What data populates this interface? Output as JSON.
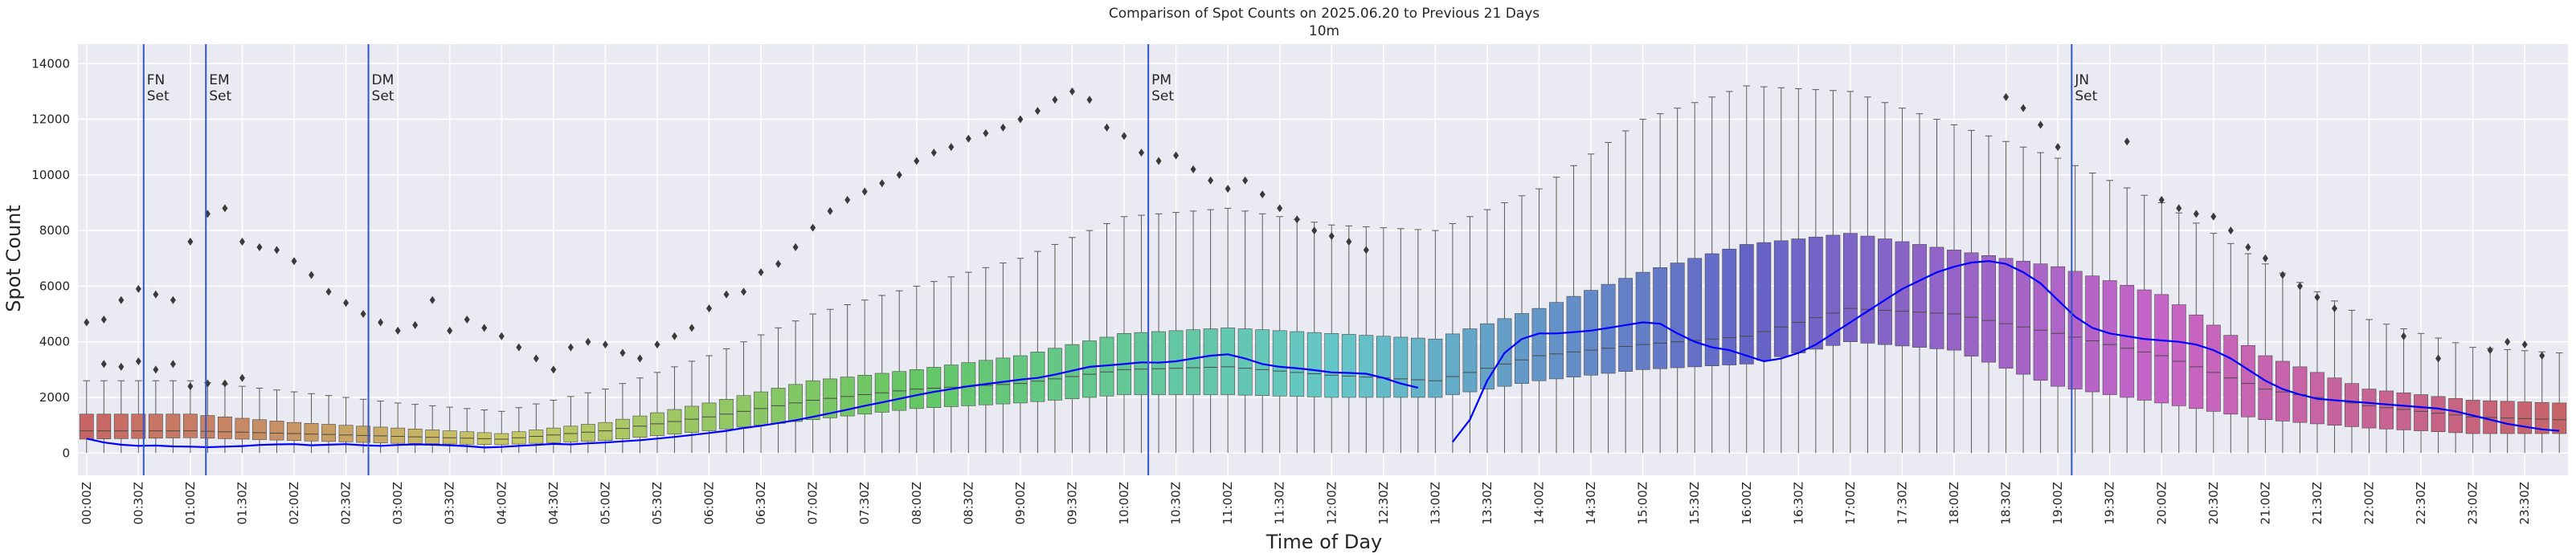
{
  "chart_data": {
    "type": "box",
    "title": "Comparison of Spot Counts on 2025.06.20 to Previous 21 Days",
    "subtitle": "10m",
    "xlabel": "Time of Day",
    "ylabel": "Spot Count",
    "ylim": [
      -800,
      14700
    ],
    "yticks": [
      0,
      2000,
      4000,
      6000,
      8000,
      10000,
      12000,
      14000
    ],
    "bins_per_day": 144,
    "bin_minutes": 10,
    "xtick_labels": [
      "00:00Z",
      "00:30Z",
      "01:00Z",
      "01:30Z",
      "02:00Z",
      "02:30Z",
      "03:00Z",
      "03:30Z",
      "04:00Z",
      "04:30Z",
      "05:00Z",
      "05:30Z",
      "06:00Z",
      "06:30Z",
      "07:00Z",
      "07:30Z",
      "08:00Z",
      "08:30Z",
      "09:00Z",
      "09:30Z",
      "10:00Z",
      "10:30Z",
      "11:00Z",
      "11:30Z",
      "12:00Z",
      "12:30Z",
      "13:00Z",
      "13:30Z",
      "14:00Z",
      "14:30Z",
      "15:00Z",
      "15:30Z",
      "16:00Z",
      "16:30Z",
      "17:00Z",
      "17:30Z",
      "18:00Z",
      "18:30Z",
      "19:00Z",
      "19:30Z",
      "20:00Z",
      "20:30Z",
      "21:00Z",
      "21:30Z",
      "22:00Z",
      "22:30Z",
      "23:00Z",
      "23:30Z"
    ],
    "annotations": [
      {
        "name": "fn",
        "bin": 3.3,
        "line1": "FN",
        "line2": "Set"
      },
      {
        "name": "em",
        "bin": 6.9,
        "line1": "EM",
        "line2": "Set"
      },
      {
        "name": "dm",
        "bin": 16.3,
        "line1": "DM",
        "line2": "Set"
      },
      {
        "name": "pm",
        "bin": 61.4,
        "line1": "PM",
        "line2": "Set"
      },
      {
        "name": "jn",
        "bin": 114.8,
        "line1": "JN",
        "line2": "Set"
      }
    ],
    "median_keypoints": [
      [
        0,
        800
      ],
      [
        6,
        800
      ],
      [
        12,
        700
      ],
      [
        18,
        600
      ],
      [
        24,
        500
      ],
      [
        30,
        800
      ],
      [
        36,
        1300
      ],
      [
        42,
        1900
      ],
      [
        48,
        2300
      ],
      [
        54,
        2500
      ],
      [
        60,
        3000
      ],
      [
        66,
        3100
      ],
      [
        72,
        2800
      ],
      [
        78,
        2600
      ],
      [
        84,
        3500
      ],
      [
        90,
        3900
      ],
      [
        96,
        4200
      ],
      [
        102,
        5200
      ],
      [
        108,
        5000
      ],
      [
        114,
        4300
      ],
      [
        120,
        3500
      ],
      [
        126,
        2300
      ],
      [
        132,
        1700
      ],
      [
        138,
        1300
      ],
      [
        143,
        1200
      ]
    ],
    "q1_keypoints": [
      [
        0,
        500
      ],
      [
        6,
        550
      ],
      [
        12,
        450
      ],
      [
        18,
        350
      ],
      [
        24,
        300
      ],
      [
        30,
        450
      ],
      [
        36,
        800
      ],
      [
        42,
        1200
      ],
      [
        48,
        1600
      ],
      [
        54,
        1800
      ],
      [
        60,
        2100
      ],
      [
        66,
        2100
      ],
      [
        72,
        2000
      ],
      [
        78,
        2000
      ],
      [
        84,
        2600
      ],
      [
        90,
        3000
      ],
      [
        96,
        3200
      ],
      [
        102,
        4000
      ],
      [
        108,
        3700
      ],
      [
        114,
        2400
      ],
      [
        120,
        1800
      ],
      [
        126,
        1200
      ],
      [
        132,
        900
      ],
      [
        138,
        700
      ],
      [
        143,
        700
      ]
    ],
    "q3_keypoints": [
      [
        0,
        1400
      ],
      [
        6,
        1400
      ],
      [
        12,
        1100
      ],
      [
        18,
        900
      ],
      [
        24,
        700
      ],
      [
        30,
        1100
      ],
      [
        36,
        1800
      ],
      [
        42,
        2600
      ],
      [
        48,
        3000
      ],
      [
        54,
        3500
      ],
      [
        60,
        4300
      ],
      [
        66,
        4500
      ],
      [
        72,
        4300
      ],
      [
        78,
        4100
      ],
      [
        84,
        5200
      ],
      [
        90,
        6500
      ],
      [
        96,
        7500
      ],
      [
        102,
        7900
      ],
      [
        108,
        7300
      ],
      [
        114,
        6700
      ],
      [
        120,
        5700
      ],
      [
        126,
        3500
      ],
      [
        132,
        2300
      ],
      [
        138,
        1900
      ],
      [
        143,
        1800
      ]
    ],
    "whisker_high_keypoints": [
      [
        0,
        2600
      ],
      [
        6,
        2600
      ],
      [
        12,
        2200
      ],
      [
        18,
        1800
      ],
      [
        24,
        1500
      ],
      [
        30,
        2300
      ],
      [
        36,
        3500
      ],
      [
        42,
        5000
      ],
      [
        48,
        6000
      ],
      [
        54,
        7000
      ],
      [
        60,
        8500
      ],
      [
        66,
        8800
      ],
      [
        72,
        8200
      ],
      [
        78,
        8000
      ],
      [
        84,
        9500
      ],
      [
        90,
        12000
      ],
      [
        96,
        13200
      ],
      [
        102,
        13000
      ],
      [
        108,
        11800
      ],
      [
        114,
        10600
      ],
      [
        120,
        9000
      ],
      [
        126,
        6800
      ],
      [
        132,
        4800
      ],
      [
        138,
        3800
      ],
      [
        143,
        3600
      ]
    ],
    "today_series": [
      520,
      380,
      300,
      260,
      270,
      240,
      230,
      210,
      230,
      250,
      290,
      310,
      320,
      280,
      300,
      320,
      280,
      260,
      290,
      310,
      300,
      280,
      250,
      200,
      220,
      260,
      290,
      330,
      310,
      350,
      380,
      420,
      460,
      520,
      580,
      650,
      720,
      800,
      900,
      980,
      1080,
      1180,
      1300,
      1430,
      1560,
      1700,
      1820,
      1950,
      2080,
      2200,
      2300,
      2400,
      2480,
      2560,
      2640,
      2700,
      2820,
      2960,
      3100,
      3150,
      3200,
      3260,
      3250,
      3300,
      3400,
      3500,
      3550,
      3400,
      3200,
      3100,
      3050,
      2980,
      2900,
      2880,
      2850,
      2700,
      2500,
      2350,
      null,
      400,
      1200,
      2600,
      3600,
      4100,
      4300,
      4300,
      4350,
      4400,
      4500,
      4600,
      4700,
      4650,
      4300,
      4000,
      3800,
      3700,
      3500,
      3300,
      3400,
      3600,
      3900,
      4300,
      4700,
      5100,
      5500,
      5900,
      6200,
      6500,
      6700,
      6850,
      6900,
      6800,
      6500,
      6100,
      5500,
      4900,
      4500,
      4300,
      4200,
      4100,
      4050,
      4000,
      3900,
      3700,
      3400,
      3000,
      2600,
      2300,
      2100,
      1950,
      1900,
      1850,
      1800,
      1750,
      1700,
      1650,
      1600,
      1500,
      1350,
      1200,
      1050,
      950,
      850,
      800
    ],
    "outlier_points": [
      [
        0,
        4700
      ],
      [
        1,
        4800
      ],
      [
        2,
        5500
      ],
      [
        3,
        5900
      ],
      [
        4,
        5700
      ],
      [
        5,
        5500
      ],
      [
        1,
        3200
      ],
      [
        2,
        3100
      ],
      [
        3,
        3300
      ],
      [
        4,
        3000
      ],
      [
        5,
        3200
      ],
      [
        6,
        7600
      ],
      [
        7,
        8600
      ],
      [
        8,
        8800
      ],
      [
        9,
        7600
      ],
      [
        10,
        7400
      ],
      [
        11,
        7300
      ],
      [
        12,
        6900
      ],
      [
        13,
        6400
      ],
      [
        14,
        5800
      ],
      [
        15,
        5400
      ],
      [
        6,
        2400
      ],
      [
        7,
        2500
      ],
      [
        8,
        2500
      ],
      [
        9,
        2700
      ],
      [
        16,
        5000
      ],
      [
        17,
        4700
      ],
      [
        18,
        4400
      ],
      [
        19,
        4600
      ],
      [
        20,
        5500
      ],
      [
        21,
        4400
      ],
      [
        22,
        4800
      ],
      [
        23,
        4500
      ],
      [
        24,
        4200
      ],
      [
        25,
        3800
      ],
      [
        26,
        3400
      ],
      [
        27,
        3000
      ],
      [
        28,
        3800
      ],
      [
        29,
        4000
      ],
      [
        30,
        3900
      ],
      [
        31,
        3600
      ],
      [
        32,
        3400
      ],
      [
        33,
        3900
      ],
      [
        34,
        4200
      ],
      [
        35,
        4500
      ],
      [
        36,
        5200
      ],
      [
        37,
        5700
      ],
      [
        38,
        5800
      ],
      [
        39,
        6500
      ],
      [
        40,
        6800
      ],
      [
        41,
        7400
      ],
      [
        42,
        8100
      ],
      [
        43,
        8700
      ],
      [
        44,
        9100
      ],
      [
        45,
        9400
      ],
      [
        46,
        9700
      ],
      [
        47,
        10000
      ],
      [
        48,
        10500
      ],
      [
        49,
        10800
      ],
      [
        50,
        11000
      ],
      [
        51,
        11300
      ],
      [
        52,
        11500
      ],
      [
        53,
        11700
      ],
      [
        54,
        12000
      ],
      [
        55,
        12300
      ],
      [
        56,
        12700
      ],
      [
        57,
        13000
      ],
      [
        58,
        12700
      ],
      [
        59,
        11700
      ],
      [
        60,
        11400
      ],
      [
        61,
        10800
      ],
      [
        62,
        10500
      ],
      [
        63,
        10700
      ],
      [
        64,
        10200
      ],
      [
        65,
        9800
      ],
      [
        66,
        9500
      ],
      [
        67,
        9800
      ],
      [
        68,
        9300
      ],
      [
        69,
        8800
      ],
      [
        70,
        8400
      ],
      [
        71,
        8000
      ],
      [
        72,
        7800
      ],
      [
        73,
        7600
      ],
      [
        74,
        7300
      ],
      [
        111,
        12800
      ],
      [
        112,
        12400
      ],
      [
        113,
        11800
      ],
      [
        114,
        11000
      ],
      [
        118,
        11200
      ],
      [
        120,
        9100
      ],
      [
        121,
        8800
      ],
      [
        122,
        8600
      ],
      [
        123,
        8500
      ],
      [
        124,
        8000
      ],
      [
        125,
        7400
      ],
      [
        126,
        7000
      ],
      [
        127,
        6400
      ],
      [
        128,
        6000
      ],
      [
        129,
        5600
      ],
      [
        130,
        5200
      ],
      [
        134,
        4200
      ],
      [
        136,
        3400
      ],
      [
        139,
        3700
      ],
      [
        140,
        4000
      ],
      [
        141,
        3900
      ],
      [
        142,
        3500
      ]
    ]
  }
}
